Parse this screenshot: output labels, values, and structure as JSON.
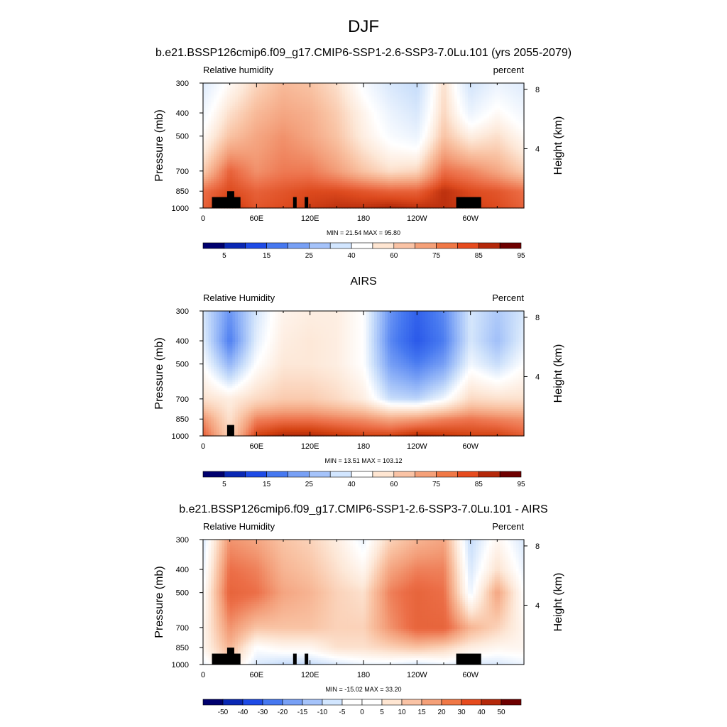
{
  "figure": {
    "title": "DJF",
    "axis_labels": {
      "left": "Pressure (mb)",
      "right": "Height (km)"
    },
    "colors": {
      "land_mask": "#000000",
      "background": "#ffffff"
    }
  },
  "chart_data": [
    {
      "type": "heatmap",
      "title": "b.e21.BSSP126cmip6.f09_g17.CMIP6-SSP1-2.6-SSP3-7.0Lu.101 (yrs 2055-2079)",
      "left_label": "Relative humidity",
      "right_label": "percent",
      "ylabel": "Pressure (mb)",
      "y2label": "Height (km)",
      "x_ticks": [
        "0",
        "60E",
        "120E",
        "180",
        "120W",
        "60W"
      ],
      "x_tick_values": [
        0,
        60,
        120,
        180,
        240,
        300
      ],
      "xlim": [
        0,
        360
      ],
      "y_ticks": [
        "300",
        "400",
        "500",
        "700",
        "850",
        "1000"
      ],
      "y_tick_values": [
        300,
        400,
        500,
        700,
        850,
        1000
      ],
      "ylim": [
        1000,
        300
      ],
      "y_scale": "log",
      "height_ticks": [
        "4",
        "8"
      ],
      "height_tick_values": [
        4,
        8
      ],
      "stats": "MIN =  21.54  MAX =  95.80",
      "min": 21.54,
      "max": 95.8,
      "colorbar_labels": [
        "5",
        "15",
        "25",
        "40",
        "60",
        "75",
        "85",
        "95"
      ],
      "colorbar_colors": [
        "#00006e",
        "#0a28b4",
        "#1e4be6",
        "#4678f0",
        "#78a0f5",
        "#a5c3fa",
        "#d2e6ff",
        "#ffffff",
        "#ffe6d2",
        "#fac3a5",
        "#f5a078",
        "#f07846",
        "#e64b1e",
        "#b4280a",
        "#6e0000"
      ],
      "color_scale": [
        {
          "v": 20,
          "c": "#a8c8f5"
        },
        {
          "v": 35,
          "c": "#cfe2fb"
        },
        {
          "v": 50,
          "c": "#ffffff"
        },
        {
          "v": 58,
          "c": "#fde8d8"
        },
        {
          "v": 66,
          "c": "#f9c3a4"
        },
        {
          "v": 74,
          "c": "#f39d78"
        },
        {
          "v": 82,
          "c": "#ec6e47"
        },
        {
          "v": 88,
          "c": "#dd4a1e"
        },
        {
          "v": 93,
          "c": "#b42a0a"
        },
        {
          "v": 100,
          "c": "#7a0c02"
        }
      ],
      "field": {
        "x": [
          0,
          30,
          60,
          90,
          120,
          150,
          180,
          210,
          240,
          270,
          300,
          330,
          360
        ],
        "p": [
          300,
          400,
          500,
          700,
          850,
          1000
        ],
        "values": [
          [
            40,
            52,
            62,
            68,
            66,
            60,
            48,
            38,
            32,
            60,
            36,
            44,
            40
          ],
          [
            46,
            60,
            68,
            72,
            70,
            64,
            54,
            44,
            38,
            62,
            44,
            52,
            46
          ],
          [
            52,
            66,
            72,
            76,
            72,
            66,
            56,
            48,
            44,
            66,
            56,
            60,
            52
          ],
          [
            64,
            84,
            76,
            80,
            80,
            74,
            66,
            60,
            62,
            82,
            78,
            72,
            64
          ],
          [
            82,
            88,
            84,
            86,
            88,
            88,
            86,
            84,
            84,
            92,
            88,
            86,
            82
          ],
          [
            84,
            92,
            86,
            88,
            90,
            92,
            92,
            94,
            92,
            92,
            90,
            88,
            84
          ]
        ]
      },
      "land_mask": [
        {
          "x0": 10,
          "x1": 42,
          "p_top": 900
        },
        {
          "x0": 27,
          "x1": 35,
          "p_top": 850
        },
        {
          "x0": 101,
          "x1": 105,
          "p_top": 900
        },
        {
          "x0": 114,
          "x1": 118,
          "p_top": 900
        },
        {
          "x0": 284,
          "x1": 312,
          "p_top": 900
        }
      ]
    },
    {
      "type": "heatmap",
      "title": "AIRS",
      "left_label": "Relative Humidity",
      "right_label": "Percent",
      "ylabel": "Pressure (mb)",
      "y2label": "Height (km)",
      "x_ticks": [
        "0",
        "60E",
        "120E",
        "180",
        "120W",
        "60W"
      ],
      "x_tick_values": [
        0,
        60,
        120,
        180,
        240,
        300
      ],
      "xlim": [
        0,
        360
      ],
      "y_ticks": [
        "300",
        "400",
        "500",
        "700",
        "850",
        "1000"
      ],
      "y_tick_values": [
        300,
        400,
        500,
        700,
        850,
        1000
      ],
      "ylim": [
        1000,
        300
      ],
      "y_scale": "log",
      "height_ticks": [
        "4",
        "8"
      ],
      "height_tick_values": [
        4,
        8
      ],
      "stats": "MIN =  13.51  MAX = 103.12",
      "min": 13.51,
      "max": 103.12,
      "colorbar_labels": [
        "5",
        "15",
        "25",
        "40",
        "60",
        "75",
        "85",
        "95"
      ],
      "colorbar_colors": [
        "#00006e",
        "#0a28b4",
        "#1e4be6",
        "#4678f0",
        "#78a0f5",
        "#a5c3fa",
        "#d2e6ff",
        "#ffffff",
        "#ffe6d2",
        "#fac3a5",
        "#f5a078",
        "#f07846",
        "#e64b1e",
        "#b4280a",
        "#6e0000"
      ],
      "color_scale": [
        {
          "v": 15,
          "c": "#1e4be6"
        },
        {
          "v": 25,
          "c": "#4678f0"
        },
        {
          "v": 35,
          "c": "#8cb0f7"
        },
        {
          "v": 45,
          "c": "#cfe2fb"
        },
        {
          "v": 52,
          "c": "#ffffff"
        },
        {
          "v": 60,
          "c": "#fde8d8"
        },
        {
          "v": 70,
          "c": "#f9c3a4"
        },
        {
          "v": 78,
          "c": "#f39d78"
        },
        {
          "v": 85,
          "c": "#ec6e47"
        },
        {
          "v": 92,
          "c": "#d2400f"
        },
        {
          "v": 100,
          "c": "#8a1002"
        }
      ],
      "field": {
        "x": [
          0,
          30,
          60,
          90,
          120,
          150,
          180,
          210,
          240,
          270,
          300,
          330,
          360
        ],
        "p": [
          300,
          400,
          500,
          700,
          850,
          1000
        ],
        "values": [
          [
            46,
            30,
            46,
            56,
            58,
            58,
            52,
            30,
            20,
            28,
            46,
            40,
            46
          ],
          [
            48,
            26,
            48,
            58,
            60,
            58,
            52,
            28,
            18,
            26,
            46,
            38,
            48
          ],
          [
            52,
            36,
            52,
            60,
            60,
            58,
            52,
            32,
            26,
            32,
            50,
            44,
            52
          ],
          [
            62,
            58,
            64,
            68,
            68,
            64,
            58,
            44,
            42,
            50,
            64,
            62,
            62
          ],
          [
            80,
            62,
            82,
            84,
            84,
            82,
            80,
            76,
            78,
            82,
            84,
            82,
            80
          ],
          [
            88,
            66,
            92,
            96,
            96,
            94,
            92,
            92,
            96,
            94,
            92,
            92,
            88
          ]
        ]
      },
      "land_mask": [
        {
          "x0": 27,
          "x1": 35,
          "p_top": 900
        }
      ]
    },
    {
      "type": "heatmap",
      "title": "b.e21.BSSP126cmip6.f09_g17.CMIP6-SSP1-2.6-SSP3-7.0Lu.101 - AIRS",
      "left_label": "Relative Humidity",
      "right_label": "Percent",
      "ylabel": "Pressure (mb)",
      "y2label": "Height (km)",
      "x_ticks": [
        "0",
        "60E",
        "120E",
        "180",
        "120W",
        "60W"
      ],
      "x_tick_values": [
        0,
        60,
        120,
        180,
        240,
        300
      ],
      "xlim": [
        0,
        360
      ],
      "y_ticks": [
        "300",
        "400",
        "500",
        "700",
        "850",
        "1000"
      ],
      "y_tick_values": [
        300,
        400,
        500,
        700,
        850,
        1000
      ],
      "ylim": [
        1000,
        300
      ],
      "y_scale": "log",
      "height_ticks": [
        "4",
        "8"
      ],
      "height_tick_values": [
        4,
        8
      ],
      "stats": "MIN = -15.02  MAX =  33.20",
      "min": -15.02,
      "max": 33.2,
      "colorbar_labels": [
        "-50",
        "-40",
        "-30",
        "-20",
        "-15",
        "-10",
        "-5",
        "0",
        "5",
        "10",
        "15",
        "20",
        "30",
        "40",
        "50"
      ],
      "colorbar_colors": [
        "#00006e",
        "#0a28b4",
        "#1e4be6",
        "#4678f0",
        "#78a0f5",
        "#a5c3fa",
        "#d2e6ff",
        "#ffffff",
        "#ffffff",
        "#ffe6d2",
        "#fac3a5",
        "#f5a078",
        "#f07846",
        "#e64b1e",
        "#b4280a",
        "#6e0000"
      ],
      "color_scale": [
        {
          "v": -15,
          "c": "#4678f0"
        },
        {
          "v": -10,
          "c": "#8cb0f7"
        },
        {
          "v": -5,
          "c": "#cfe2fb"
        },
        {
          "v": 0,
          "c": "#ffffff"
        },
        {
          "v": 5,
          "c": "#fde8d8"
        },
        {
          "v": 10,
          "c": "#f9c3a4"
        },
        {
          "v": 15,
          "c": "#f39d78"
        },
        {
          "v": 20,
          "c": "#ec6e47"
        },
        {
          "v": 30,
          "c": "#d2400f"
        },
        {
          "v": 35,
          "c": "#b42a0a"
        }
      ],
      "field": {
        "x": [
          0,
          30,
          60,
          90,
          120,
          150,
          180,
          210,
          240,
          270,
          300,
          330,
          360
        ],
        "p": [
          300,
          400,
          500,
          700,
          850,
          1000
        ],
        "values": [
          [
            -4,
            16,
            14,
            10,
            8,
            4,
            -2,
            8,
            12,
            14,
            -6,
            2,
            -4
          ],
          [
            -2,
            20,
            18,
            12,
            10,
            6,
            2,
            14,
            18,
            18,
            -4,
            6,
            -2
          ],
          [
            0,
            22,
            20,
            14,
            12,
            8,
            6,
            18,
            22,
            20,
            -2,
            14,
            0
          ],
          [
            2,
            16,
            10,
            10,
            10,
            8,
            8,
            16,
            22,
            22,
            12,
            8,
            2
          ],
          [
            2,
            12,
            0,
            2,
            2,
            6,
            6,
            8,
            10,
            8,
            4,
            2,
            2
          ],
          [
            -2,
            6,
            -4,
            -6,
            -6,
            -4,
            -2,
            -2,
            -4,
            -2,
            -4,
            -4,
            -2
          ]
        ]
      },
      "land_mask": [
        {
          "x0": 10,
          "x1": 42,
          "p_top": 900
        },
        {
          "x0": 27,
          "x1": 35,
          "p_top": 850
        },
        {
          "x0": 101,
          "x1": 105,
          "p_top": 900
        },
        {
          "x0": 114,
          "x1": 118,
          "p_top": 900
        },
        {
          "x0": 284,
          "x1": 312,
          "p_top": 900
        }
      ]
    }
  ]
}
